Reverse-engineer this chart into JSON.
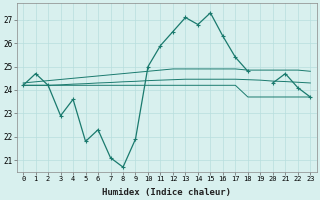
{
  "x": [
    0,
    1,
    2,
    3,
    4,
    5,
    6,
    7,
    8,
    9,
    10,
    11,
    12,
    13,
    14,
    15,
    16,
    17,
    18,
    19,
    20,
    21,
    22,
    23
  ],
  "line_main": [
    24.2,
    24.7,
    24.2,
    22.9,
    23.6,
    21.8,
    22.3,
    21.1,
    20.7,
    21.9,
    25.0,
    25.9,
    26.5,
    27.1,
    26.8,
    27.3,
    26.3,
    25.4,
    24.8,
    null,
    24.3,
    24.7,
    24.1,
    23.7
  ],
  "line_avg_top": [
    24.3,
    24.35,
    24.4,
    24.45,
    24.5,
    24.55,
    24.6,
    24.65,
    24.7,
    24.75,
    24.8,
    24.85,
    24.9,
    24.9,
    24.9,
    24.9,
    24.9,
    24.9,
    24.85,
    24.85,
    24.85,
    24.85,
    24.85,
    24.8
  ],
  "line_avg_mid": [
    24.2,
    24.2,
    24.2,
    24.22,
    24.25,
    24.27,
    24.3,
    24.32,
    24.35,
    24.37,
    24.4,
    24.42,
    24.44,
    24.46,
    24.46,
    24.46,
    24.46,
    24.46,
    24.44,
    24.42,
    24.38,
    24.36,
    24.33,
    24.3
  ],
  "line_avg_bot": [
    24.2,
    24.2,
    24.2,
    24.2,
    24.2,
    24.2,
    24.2,
    24.2,
    24.2,
    24.2,
    24.2,
    24.2,
    24.2,
    24.2,
    24.2,
    24.2,
    24.2,
    24.2,
    23.7,
    23.7,
    23.7,
    23.7,
    23.7,
    23.7
  ],
  "color_main": "#1a7a6e",
  "bg_color": "#d8f0ee",
  "grid_color": "#b8dede",
  "ylim": [
    20.5,
    27.7
  ],
  "yticks": [
    21,
    22,
    23,
    24,
    25,
    26,
    27
  ],
  "xticks": [
    0,
    1,
    2,
    3,
    4,
    5,
    6,
    7,
    8,
    9,
    10,
    11,
    12,
    13,
    14,
    15,
    16,
    17,
    18,
    19,
    20,
    21,
    22,
    23
  ],
  "xlabel": "Humidex (Indice chaleur)"
}
